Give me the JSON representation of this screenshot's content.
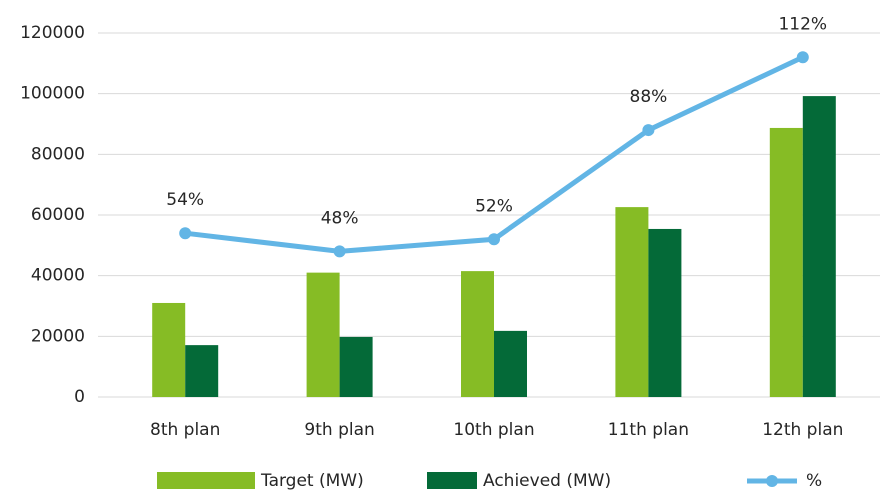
{
  "chart_data": {
    "type": "bar",
    "categories": [
      "8th plan",
      "9th plan",
      "10th plan",
      "11th plan",
      "12th plan"
    ],
    "series": [
      {
        "name": "Target (MW)",
        "type": "bar",
        "color": "#86bc25",
        "values": [
          31000,
          41000,
          41500,
          62600,
          88700
        ]
      },
      {
        "name": "Achieved (MW)",
        "type": "bar",
        "color": "#046a38",
        "values": [
          17100,
          19800,
          21800,
          55400,
          99200
        ]
      },
      {
        "name": "%",
        "type": "line",
        "axis": "y2",
        "color": "#62b5e5",
        "values": [
          54,
          48,
          52,
          88,
          112
        ],
        "value_labels": [
          "54%",
          "48%",
          "52%",
          "88%",
          "112%"
        ]
      }
    ],
    "ylim": [
      0,
      120000
    ],
    "yticks": [
      0,
      20000,
      40000,
      60000,
      80000,
      100000,
      120000
    ],
    "y2lim": [
      0,
      120
    ],
    "grid": true,
    "legend": "bottom"
  }
}
